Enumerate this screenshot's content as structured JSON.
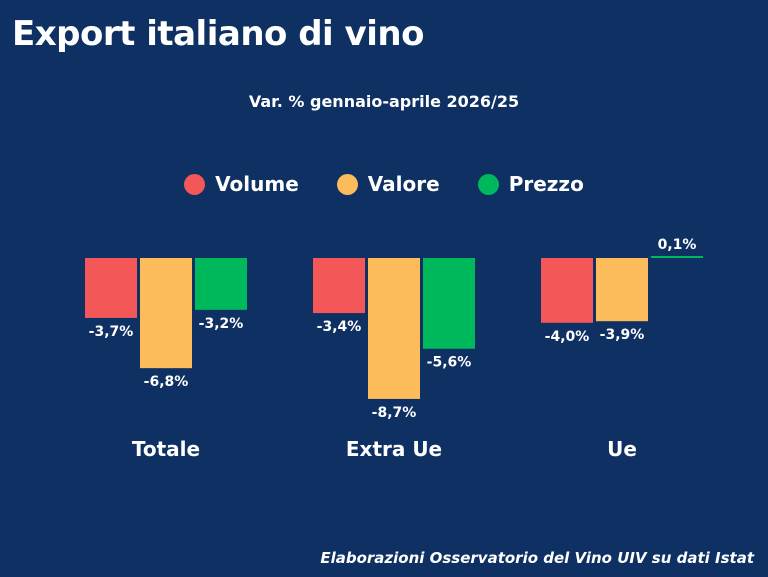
{
  "title": "Export italiano di vino",
  "subtitle": "Var. % gennaio-aprile 2026/25",
  "source": "Elaborazioni Osservatorio del Vino UIV su dati Istat",
  "legend": [
    {
      "name": "Volume",
      "color": "#f45757"
    },
    {
      "name": "Valore",
      "color": "#fdbc5c"
    },
    {
      "name": "Prezzo",
      "color": "#00b85c"
    }
  ],
  "chart_data": {
    "type": "bar",
    "categories": [
      "Totale",
      "Extra Ue",
      "Ue"
    ],
    "series": [
      {
        "name": "Volume",
        "color": "#f45757",
        "values": [
          -3.7,
          -3.4,
          -4.0
        ],
        "labels": [
          "-3,7%",
          "-3,4%",
          "-4,0%"
        ]
      },
      {
        "name": "Valore",
        "color": "#fdbc5c",
        "values": [
          -6.8,
          -8.7,
          -3.9
        ],
        "labels": [
          "-6,8%",
          "-8,7%",
          "-3,9%"
        ]
      },
      {
        "name": "Prezzo",
        "color": "#00b85c",
        "values": [
          -3.2,
          -5.6,
          0.1
        ],
        "labels": [
          "-3,2%",
          "-5,6%",
          "0,1%"
        ]
      }
    ],
    "legend_position": "top-center",
    "grid": false
  }
}
